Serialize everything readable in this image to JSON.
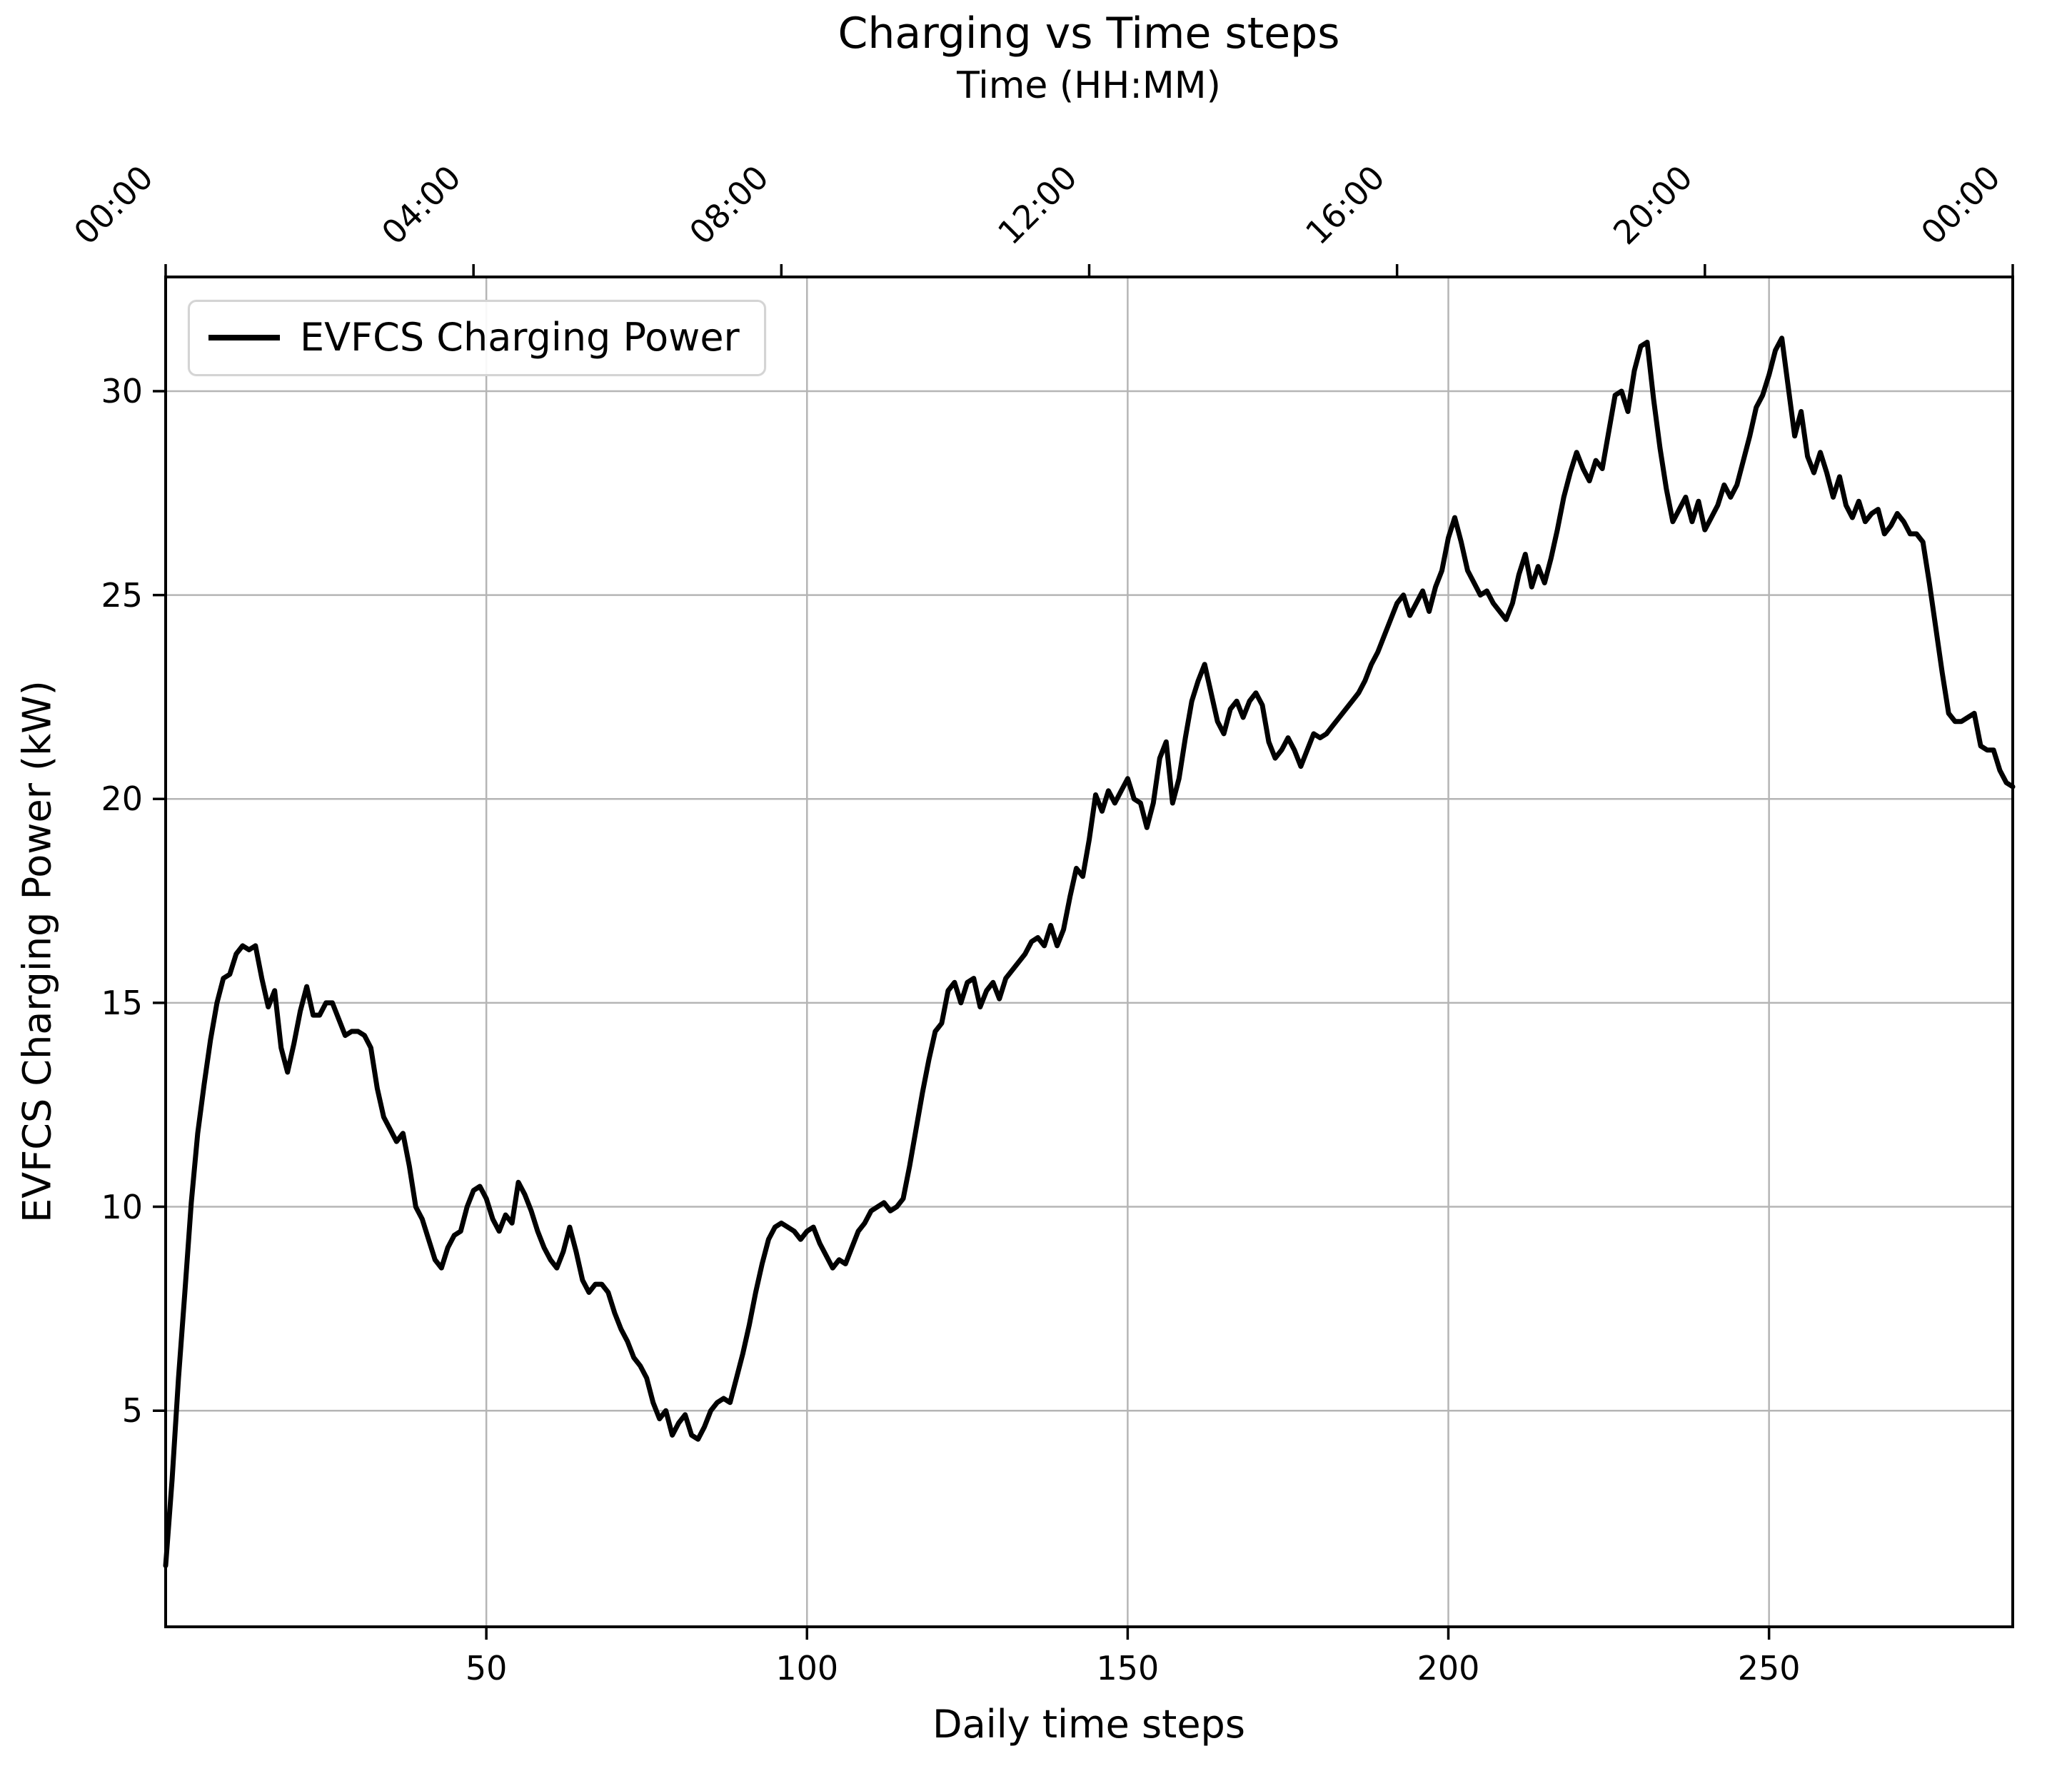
{
  "chart_data": {
    "type": "line",
    "title": "Charging vs Time steps",
    "top_axis_label": "Time (HH:MM)",
    "xlabel": "Daily time steps",
    "ylabel": "EVFCS Charging Power (kW)",
    "legend": {
      "position": "upper-left",
      "entries": [
        {
          "label": "EVFCS Charging Power",
          "color": "#000000"
        }
      ]
    },
    "grid": true,
    "xlim": [
      0,
      288
    ],
    "ylim": [
      -0.3,
      32.8
    ],
    "x_ticks_bottom": [
      {
        "step": 50,
        "label": "50"
      },
      {
        "step": 100,
        "label": "100"
      },
      {
        "step": 150,
        "label": "150"
      },
      {
        "step": 200,
        "label": "200"
      },
      {
        "step": 250,
        "label": "250"
      }
    ],
    "x_ticks_top": [
      {
        "step": 0,
        "label": "00:00"
      },
      {
        "step": 48,
        "label": "04:00"
      },
      {
        "step": 96,
        "label": "08:00"
      },
      {
        "step": 144,
        "label": "12:00"
      },
      {
        "step": 192,
        "label": "16:00"
      },
      {
        "step": 240,
        "label": "20:00"
      },
      {
        "step": 288,
        "label": "00:00"
      }
    ],
    "y_ticks": [
      {
        "value": 5,
        "label": "5"
      },
      {
        "value": 10,
        "label": "10"
      },
      {
        "value": 15,
        "label": "15"
      },
      {
        "value": 20,
        "label": "20"
      },
      {
        "value": 25,
        "label": "25"
      },
      {
        "value": 30,
        "label": "30"
      }
    ],
    "series": [
      {
        "name": "EVFCS Charging Power",
        "color": "#000000",
        "x_start": 0,
        "x_increment": 1,
        "values": [
          1.2,
          3.3,
          5.8,
          7.9,
          10.1,
          11.8,
          13.0,
          14.1,
          15.0,
          15.6,
          15.7,
          16.2,
          16.4,
          16.3,
          16.4,
          15.6,
          14.9,
          15.3,
          13.9,
          13.3,
          14.0,
          14.8,
          15.4,
          14.7,
          14.7,
          15.0,
          15.0,
          14.6,
          14.2,
          14.3,
          14.3,
          14.2,
          13.9,
          12.9,
          12.2,
          11.9,
          11.6,
          11.8,
          11.0,
          10.0,
          9.7,
          9.2,
          8.7,
          8.5,
          9.0,
          9.3,
          9.4,
          10.0,
          10.4,
          10.5,
          10.2,
          9.7,
          9.4,
          9.8,
          9.6,
          10.6,
          10.3,
          9.9,
          9.4,
          9.0,
          8.7,
          8.5,
          8.9,
          9.5,
          8.9,
          8.2,
          7.9,
          8.1,
          8.1,
          7.9,
          7.4,
          7.0,
          6.7,
          6.3,
          6.1,
          5.8,
          5.2,
          4.8,
          5.0,
          4.4,
          4.7,
          4.9,
          4.4,
          4.3,
          4.6,
          5.0,
          5.2,
          5.3,
          5.2,
          5.8,
          6.4,
          7.1,
          7.9,
          8.6,
          9.2,
          9.5,
          9.6,
          9.5,
          9.4,
          9.2,
          9.4,
          9.5,
          9.1,
          8.8,
          8.5,
          8.7,
          8.6,
          9.0,
          9.4,
          9.6,
          9.9,
          10.0,
          10.1,
          9.9,
          10.0,
          10.2,
          11.0,
          11.9,
          12.8,
          13.6,
          14.3,
          14.5,
          15.3,
          15.5,
          15.0,
          15.5,
          15.6,
          14.9,
          15.3,
          15.5,
          15.1,
          15.6,
          15.8,
          16.0,
          16.2,
          16.5,
          16.6,
          16.4,
          16.9,
          16.4,
          16.8,
          17.6,
          18.3,
          18.1,
          19.0,
          20.1,
          19.7,
          20.2,
          19.9,
          20.2,
          20.5,
          20.0,
          19.9,
          19.3,
          19.9,
          21.0,
          21.4,
          19.9,
          20.5,
          21.5,
          22.4,
          22.9,
          23.3,
          22.6,
          21.9,
          21.6,
          22.2,
          22.4,
          22.0,
          22.4,
          22.6,
          22.3,
          21.4,
          21.0,
          21.2,
          21.5,
          21.2,
          20.8,
          21.2,
          21.6,
          21.5,
          21.6,
          21.8,
          22.0,
          22.2,
          22.4,
          22.6,
          22.9,
          23.3,
          23.6,
          24.0,
          24.4,
          24.8,
          25.0,
          24.5,
          24.8,
          25.1,
          24.6,
          25.2,
          25.6,
          26.4,
          26.9,
          26.3,
          25.6,
          25.3,
          25.0,
          25.1,
          24.8,
          24.6,
          24.4,
          24.8,
          25.5,
          26.0,
          25.2,
          25.7,
          25.3,
          25.9,
          26.6,
          27.4,
          28.0,
          28.5,
          28.1,
          27.8,
          28.3,
          28.1,
          29.0,
          29.9,
          30.0,
          29.5,
          30.5,
          31.1,
          31.2,
          29.8,
          28.6,
          27.6,
          26.8,
          27.1,
          27.4,
          26.8,
          27.3,
          26.6,
          26.9,
          27.2,
          27.7,
          27.4,
          27.7,
          28.3,
          28.9,
          29.6,
          29.9,
          30.4,
          31.0,
          31.3,
          30.1,
          28.9,
          29.5,
          28.4,
          28.0,
          28.5,
          28.0,
          27.4,
          27.9,
          27.2,
          26.9,
          27.3,
          26.8,
          27.0,
          27.1,
          26.5,
          26.7,
          27.0,
          26.8,
          26.5,
          26.5,
          26.3,
          25.3,
          24.2,
          23.1,
          22.1,
          21.9,
          21.9,
          22.0,
          22.1,
          21.3,
          21.2,
          21.2,
          20.7,
          20.4,
          20.3
        ]
      }
    ]
  },
  "colors": {
    "line": "#000000",
    "grid": "#b5b5b5",
    "spine": "#000000",
    "background": "#ffffff",
    "legend_border": "#d4d4d4"
  }
}
